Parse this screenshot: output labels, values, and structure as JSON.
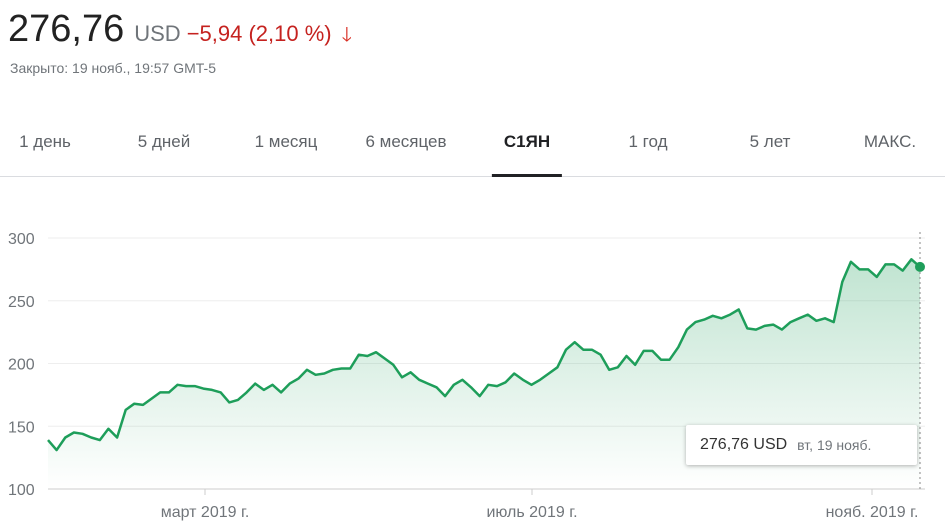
{
  "quote": {
    "price": "276,76",
    "currency": "USD",
    "change": "−5,94 (2,10 %)",
    "arrow_icon": "arrow-down-icon",
    "closed": "Закрыто: 19 нояб., 19:57 GMT-5"
  },
  "tabs": [
    {
      "label": "1 день"
    },
    {
      "label": "5 дней"
    },
    {
      "label": "1 месяц"
    },
    {
      "label": "6 месяцев"
    },
    {
      "label": "С1ЯН",
      "active": true
    },
    {
      "label": "1 год"
    },
    {
      "label": "5 лет"
    },
    {
      "label": "МАКС."
    }
  ],
  "tooltip": {
    "value": "276,76 USD",
    "date": "вт, 19 нояб."
  },
  "colors": {
    "line": "#1e9e5a",
    "negative": "#c5221f"
  },
  "chart_data": {
    "type": "area",
    "ylim": [
      100,
      300
    ],
    "yticks": [
      "300",
      "250",
      "200",
      "150",
      "100"
    ],
    "xticks": [
      "март 2019 г.",
      "июль 2019 г.",
      "нояб. 2019 г."
    ],
    "grid": true,
    "series": [
      {
        "values": [
          139,
          131,
          141,
          145,
          144,
          141,
          139,
          148,
          141,
          163,
          168,
          167,
          172,
          177,
          177,
          183,
          182,
          182,
          180,
          179,
          177,
          169,
          171,
          177,
          184,
          179,
          183,
          177,
          184,
          188,
          195,
          191,
          192,
          195,
          196,
          196,
          207,
          206,
          209,
          204,
          199,
          189,
          193,
          187,
          184,
          181,
          174,
          183,
          187,
          181,
          174,
          183,
          182,
          185,
          192,
          187,
          183,
          187,
          192,
          197,
          211,
          217,
          211,
          211,
          207,
          195,
          197,
          206,
          199,
          210,
          210,
          203,
          203,
          213,
          227,
          233,
          235,
          238,
          236,
          239,
          243,
          228,
          227,
          230,
          231,
          227,
          233,
          236,
          239,
          234,
          236,
          233,
          265,
          281,
          275,
          275,
          269,
          279,
          279,
          274,
          283,
          277
        ]
      }
    ]
  }
}
